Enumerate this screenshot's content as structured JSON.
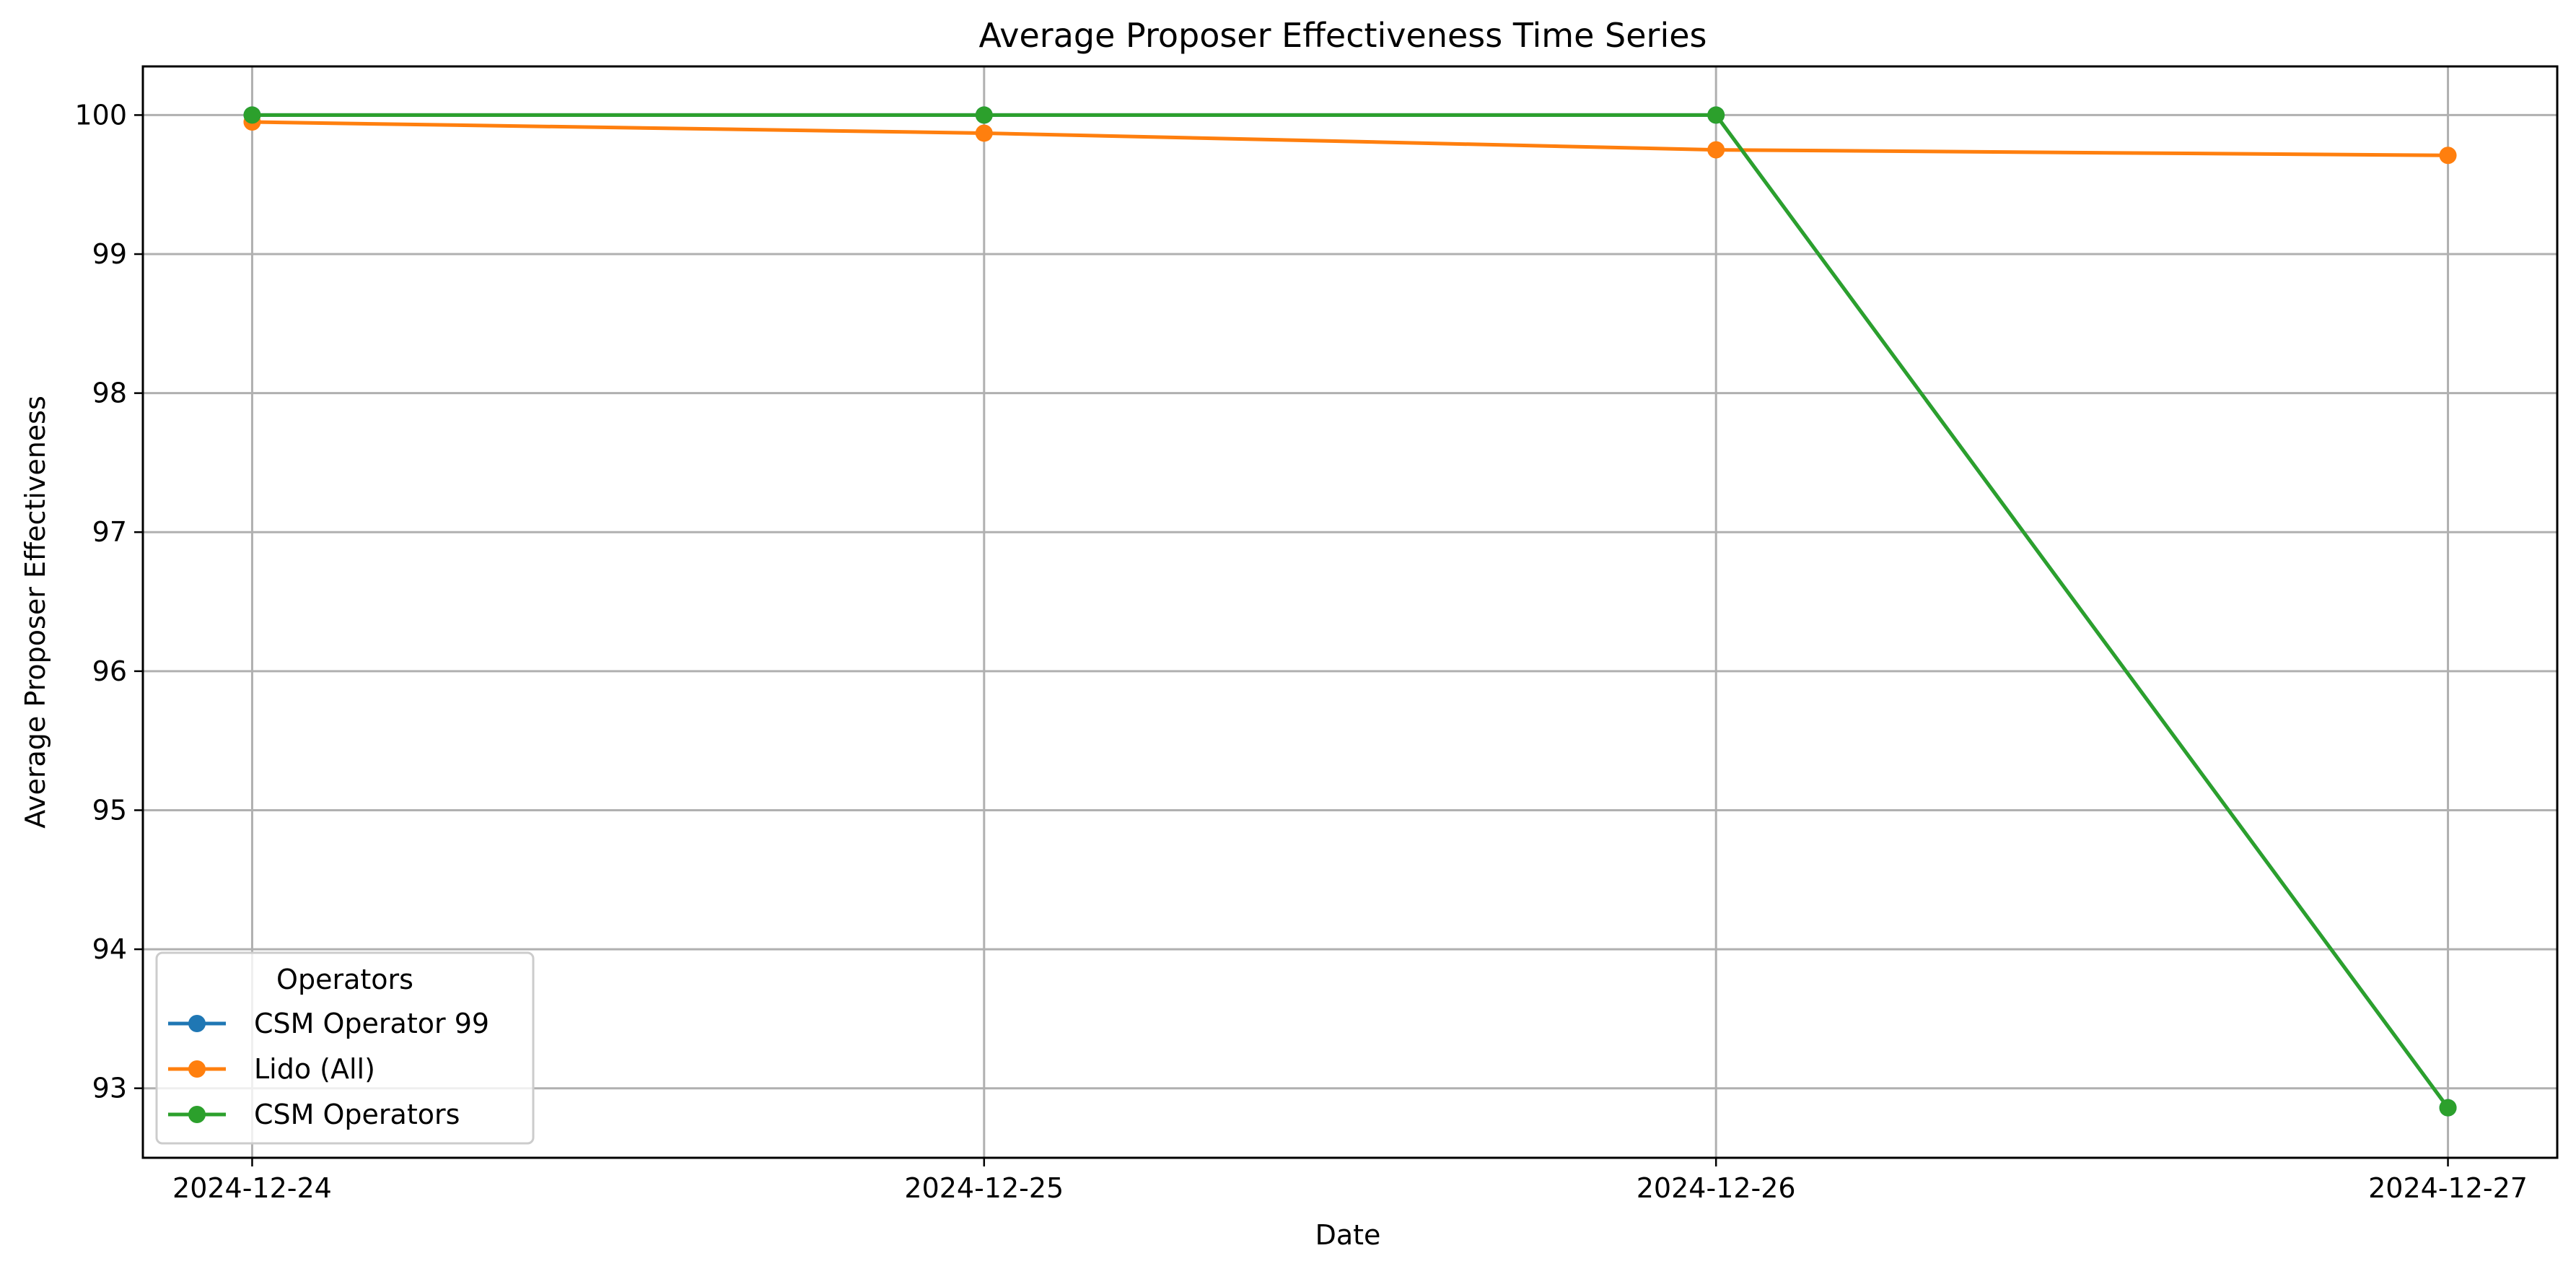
{
  "chart_data": {
    "type": "line",
    "title": "Average Proposer Effectiveness Time Series",
    "xlabel": "Date",
    "ylabel": "Average Proposer Effectiveness",
    "x": [
      "2024-12-24",
      "2024-12-25",
      "2024-12-26",
      "2024-12-27"
    ],
    "xlim": [
      "2024-12-23T20:25",
      "2024-12-27T03:35"
    ],
    "ylim": [
      92.5,
      100.35
    ],
    "yticks": [
      93,
      94,
      95,
      96,
      97,
      98,
      99,
      100
    ],
    "grid": true,
    "legend": {
      "title": "Operators",
      "placement": "lower-left"
    },
    "series": [
      {
        "name": "CSM Operator 99",
        "color": "#1f77b4",
        "values": [
          100.0,
          100.0,
          100.0,
          92.86
        ]
      },
      {
        "name": "Lido (All)",
        "color": "#ff7f0e",
        "values": [
          99.95,
          99.87,
          99.75,
          99.71
        ]
      },
      {
        "name": "CSM Operators",
        "color": "#2ca02c",
        "values": [
          100.0,
          100.0,
          100.0,
          92.86
        ]
      }
    ]
  }
}
